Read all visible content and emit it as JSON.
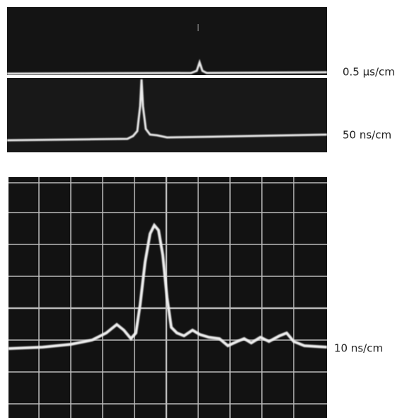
{
  "figure": {
    "labels": [
      "0.5 μs/cm",
      "50 ns/cm",
      "10 ns/cm"
    ]
  }
}
